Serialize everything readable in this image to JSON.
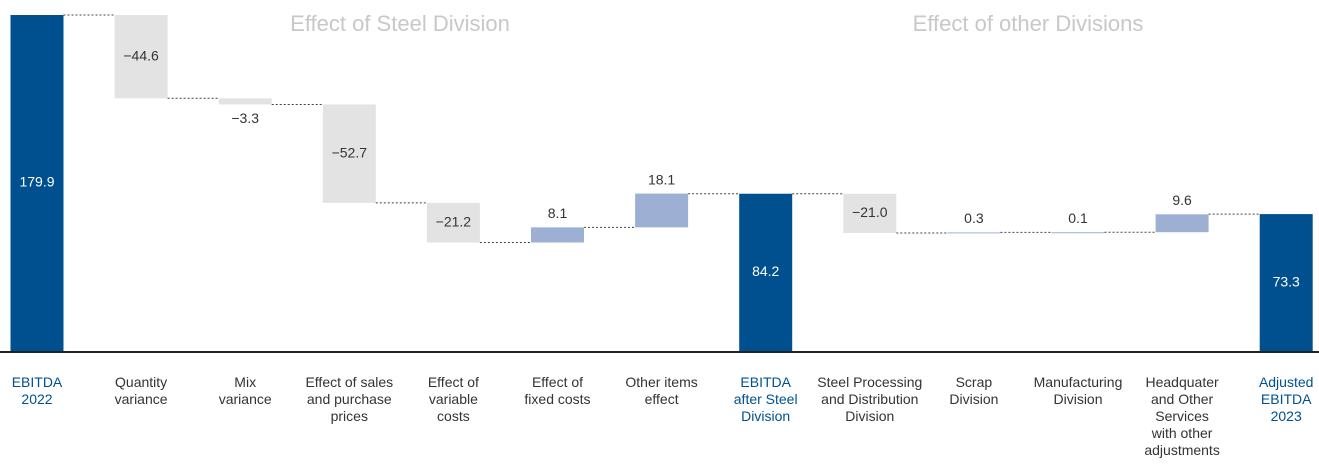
{
  "chart_data": {
    "type": "waterfall",
    "annotations": [
      "Effect of Steel Division",
      "Effect of other Divisions"
    ],
    "categories": [
      "EBITDA\n2022",
      "Quantity\nvariance",
      "Mix\nvariance",
      "Effect of sales\nand purchase\nprices",
      "Effect of\nvariable\ncosts",
      "Effect of\nfixed costs",
      "Other items\neffect",
      "EBITDA\nafter Steel\nDivision",
      "Steel Processing\nand Distribution\nDivision",
      "Scrap\nDivision",
      "Manufacturing\nDivision",
      "Headquater\nand Other\nServices\nwith other\nadjustments",
      "Adjusted\nEBITDA\n2023"
    ],
    "measure": [
      "total",
      "relative",
      "relative",
      "relative",
      "relative",
      "relative",
      "relative",
      "total",
      "relative",
      "relative",
      "relative",
      "relative",
      "total"
    ],
    "values": [
      179.9,
      -44.6,
      -3.3,
      -52.7,
      -21.2,
      8.1,
      18.1,
      84.2,
      -21.0,
      0.3,
      0.1,
      9.6,
      73.3
    ],
    "value_labels": [
      "179.9",
      "−44.6",
      "−3.3",
      "−52.7",
      "−21.2",
      "8.1",
      "18.1",
      "84.2",
      "−21.0",
      "0.3",
      "0.1",
      "9.6",
      "73.3"
    ],
    "colors": {
      "total": "#00508f",
      "decrease": "#e3e3e3",
      "increase": "#9db0d3"
    }
  }
}
